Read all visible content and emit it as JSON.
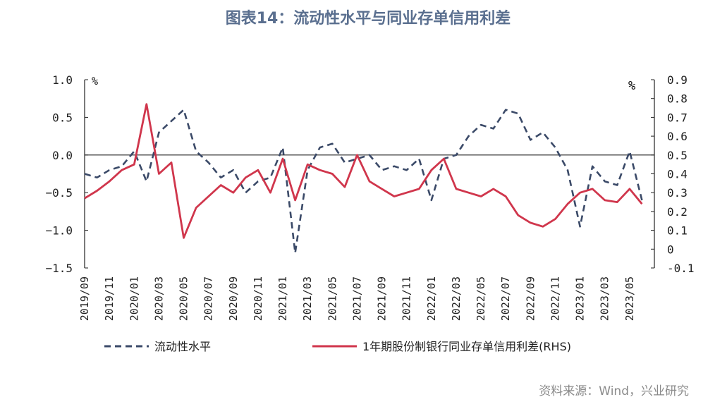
{
  "title": "图表14：流动性水平与同业存单信用利差",
  "source": "资料来源：Wind，兴业研究",
  "colors": {
    "title": "#5a6f8f",
    "liquidity": "#3b4a68",
    "spread": "#d0364c",
    "source": "#8a8a8a",
    "axis": "#222222"
  },
  "chart_data": {
    "type": "line",
    "left_axis": {
      "unit": "%",
      "ylim": [
        -1.5,
        1.0
      ],
      "ticks": [
        "1.0",
        "0.5",
        "0.0",
        "−0.5",
        "−1.0",
        "−1.5"
      ],
      "tick_values": [
        1.0,
        0.5,
        0.0,
        -0.5,
        -1.0,
        -1.5
      ]
    },
    "right_axis": {
      "unit": "%",
      "ylim": [
        -0.1,
        0.9
      ],
      "ticks": [
        "0.9",
        "0.8",
        "0.7",
        "0.6",
        "0.5",
        "0.4",
        "0.3",
        "0.2",
        "0.1",
        "0",
        "-0.1"
      ],
      "tick_values": [
        0.9,
        0.8,
        0.7,
        0.6,
        0.5,
        0.4,
        0.3,
        0.2,
        0.1,
        0.0,
        -0.1
      ]
    },
    "x_start": "2019/09",
    "x_end": "2023/07",
    "x_ticks": [
      "2019/09",
      "2019/11",
      "2020/01",
      "2020/03",
      "2020/05",
      "2020/07",
      "2020/09",
      "2020/11",
      "2021/01",
      "2021/03",
      "2021/05",
      "2021/07",
      "2021/09",
      "2021/11",
      "2022/01",
      "2022/03",
      "2022/05",
      "2022/07",
      "2022/09",
      "2022/11",
      "2023/01",
      "2023/03",
      "2023/05"
    ],
    "grid": false,
    "legend_position": "bottom",
    "series": [
      {
        "name": "流动性水平",
        "axis": "left",
        "style": "dashed",
        "x": [
          "2019/09",
          "2019/10",
          "2019/11",
          "2019/12",
          "2020/01",
          "2020/02",
          "2020/03",
          "2020/04",
          "2020/05",
          "2020/06",
          "2020/07",
          "2020/08",
          "2020/09",
          "2020/10",
          "2020/11",
          "2020/12",
          "2021/01",
          "2021/02",
          "2021/03",
          "2021/04",
          "2021/05",
          "2021/06",
          "2021/07",
          "2021/08",
          "2021/09",
          "2021/10",
          "2021/11",
          "2021/12",
          "2022/01",
          "2022/02",
          "2022/03",
          "2022/04",
          "2022/05",
          "2022/06",
          "2022/07",
          "2022/08",
          "2022/09",
          "2022/10",
          "2022/11",
          "2022/12",
          "2023/01",
          "2023/02",
          "2023/03",
          "2023/04",
          "2023/05",
          "2023/06"
        ],
        "values": [
          -0.25,
          -0.3,
          -0.2,
          -0.15,
          0.05,
          -0.35,
          0.3,
          0.45,
          0.6,
          0.05,
          -0.1,
          -0.3,
          -0.2,
          -0.5,
          -0.35,
          -0.3,
          0.1,
          -1.3,
          -0.2,
          0.1,
          0.15,
          -0.1,
          -0.05,
          0.0,
          -0.2,
          -0.15,
          -0.2,
          -0.05,
          -0.6,
          -0.05,
          0.0,
          0.25,
          0.4,
          0.35,
          0.6,
          0.55,
          0.2,
          0.3,
          0.1,
          -0.2,
          -0.95,
          -0.15,
          -0.35,
          -0.4,
          0.05,
          -0.6
        ]
      },
      {
        "name": "1年期股份制银行同业存单信用利差(RHS)",
        "axis": "right",
        "style": "solid",
        "x": [
          "2019/09",
          "2019/10",
          "2019/11",
          "2019/12",
          "2020/01",
          "2020/02",
          "2020/03",
          "2020/04",
          "2020/05",
          "2020/06",
          "2020/07",
          "2020/08",
          "2020/09",
          "2020/10",
          "2020/11",
          "2020/12",
          "2021/01",
          "2021/02",
          "2021/03",
          "2021/04",
          "2021/05",
          "2021/06",
          "2021/07",
          "2021/08",
          "2021/09",
          "2021/10",
          "2021/11",
          "2021/12",
          "2022/01",
          "2022/02",
          "2022/03",
          "2022/04",
          "2022/05",
          "2022/06",
          "2022/07",
          "2022/08",
          "2022/09",
          "2022/10",
          "2022/11",
          "2022/12",
          "2023/01",
          "2023/02",
          "2023/03",
          "2023/04",
          "2023/05",
          "2023/06"
        ],
        "values": [
          0.27,
          0.31,
          0.36,
          0.42,
          0.45,
          0.77,
          0.4,
          0.46,
          0.06,
          0.22,
          0.28,
          0.34,
          0.3,
          0.38,
          0.42,
          0.3,
          0.48,
          0.26,
          0.45,
          0.42,
          0.4,
          0.33,
          0.5,
          0.36,
          0.32,
          0.28,
          0.3,
          0.32,
          0.42,
          0.48,
          0.32,
          0.3,
          0.28,
          0.32,
          0.28,
          0.18,
          0.14,
          0.12,
          0.16,
          0.24,
          0.3,
          0.32,
          0.26,
          0.25,
          0.32,
          0.24
        ]
      }
    ]
  }
}
